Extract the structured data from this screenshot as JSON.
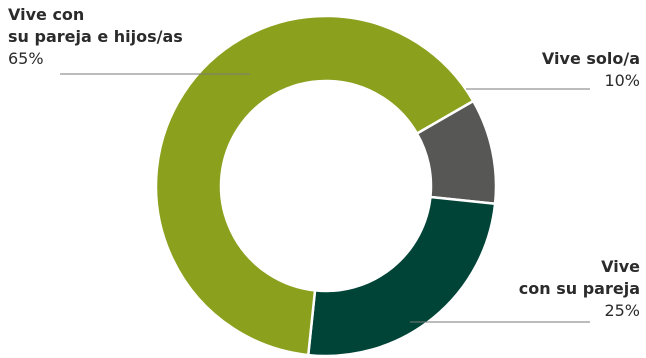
{
  "chart_data": {
    "type": "pie",
    "variant": "donut",
    "start_angle_deg": 60,
    "direction": "clockwise",
    "slices": [
      {
        "name_line1": "Vive solo/a",
        "name_line2": "",
        "value": 10,
        "label": "10%",
        "color": "#575756"
      },
      {
        "name_line1": "Vive",
        "name_line2": "con su pareja",
        "value": 25,
        "label": "25%",
        "color": "#004438"
      },
      {
        "name_line1": "Vive con",
        "name_line2": "su pareja e hijos/as",
        "value": 65,
        "label": "65%",
        "color": "#8ba11e"
      }
    ],
    "leader_line_color": "#7a7a7a"
  }
}
